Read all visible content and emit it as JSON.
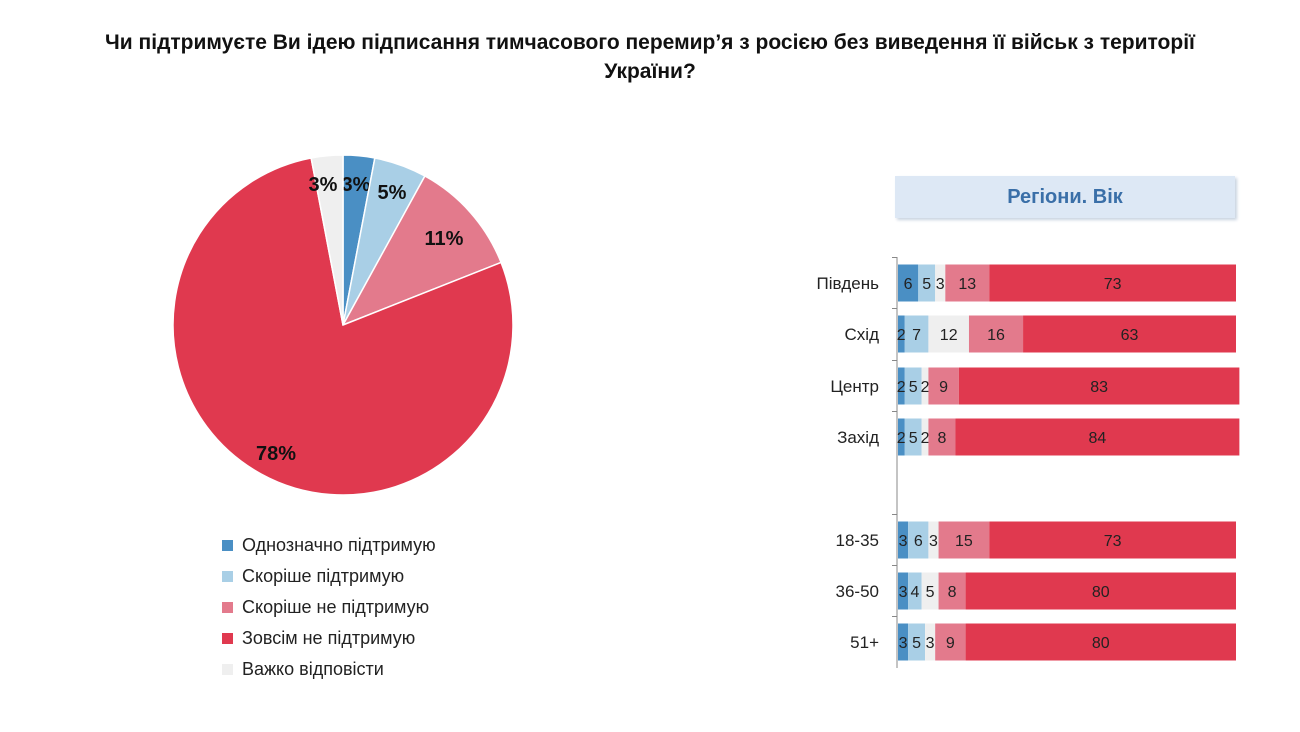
{
  "chart_data": [
    {
      "type": "pie",
      "title": "Чи підтримуєте Ви ідею підписання тимчасового перемир’я з росією без виведення її військ з території України?",
      "slices": [
        {
          "label": "Однозначно підтримую",
          "value": 3,
          "text": "3%",
          "color": "#4a8fc4"
        },
        {
          "label": "Скоріше підтримую",
          "value": 5,
          "text": "5%",
          "color": "#a9cfe6"
        },
        {
          "label": "Скоріше не підтримую",
          "value": 11,
          "text": "11%",
          "color": "#e37a8c"
        },
        {
          "label": "Зовсім не підтримую",
          "value": 78,
          "text": "78%",
          "color": "#e0394f"
        },
        {
          "label": "Важко відповісти",
          "value": 3,
          "text": "3%",
          "color": "#efefef"
        }
      ],
      "legend": [
        "Однозначно підтримую",
        "Скоріше підтримую",
        "Скоріше не підтримую",
        "Зовсім не підтримую",
        "Важко відповісти"
      ],
      "legend_placement": "bottom"
    },
    {
      "type": "bar",
      "orientation": "horizontal-stacked",
      "title": "Регіони. Вік",
      "series_order": [
        "Однозначно підтримую",
        "Скоріше підтримую",
        "Важко відповісти",
        "Скоріше не підтримую",
        "Зовсім не підтримую"
      ],
      "colors": [
        "#4a8fc4",
        "#a9cfe6",
        "#efefef",
        "#e37a8c",
        "#e0394f"
      ],
      "categories": [
        "Південь",
        "Схід",
        "Центр",
        "Захід",
        "18-35",
        "36-50",
        "51+"
      ],
      "values": [
        [
          6,
          5,
          3,
          13,
          73
        ],
        [
          2,
          7,
          12,
          16,
          63
        ],
        [
          2,
          5,
          2,
          9,
          83
        ],
        [
          2,
          5,
          2,
          8,
          84
        ],
        [
          3,
          6,
          3,
          15,
          73
        ],
        [
          3,
          4,
          5,
          8,
          80
        ],
        [
          3,
          5,
          3,
          9,
          80
        ]
      ],
      "xlim": [
        0,
        100
      ]
    }
  ]
}
